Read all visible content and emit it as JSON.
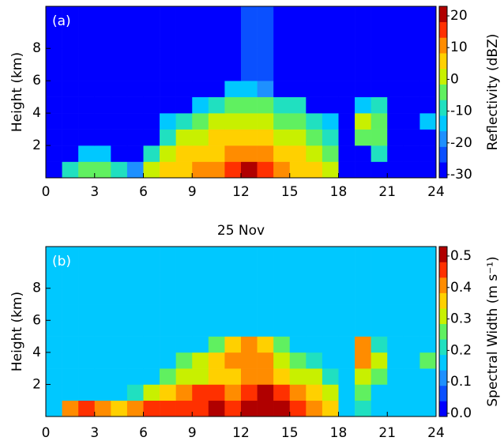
{
  "chart_data": [
    {
      "type": "heatmap",
      "title": "(a)",
      "ylabel": "Height (km)",
      "xlabel": "25 Nov",
      "xlim": [
        0,
        24
      ],
      "ylim": [
        0,
        10.6
      ],
      "xticks": [
        0,
        3,
        6,
        9,
        12,
        15,
        18,
        21,
        24
      ],
      "yticks": [
        2,
        4,
        6,
        8
      ],
      "xbins": [
        0,
        1,
        2,
        3,
        4,
        5,
        6,
        7,
        8,
        9,
        10,
        11,
        12,
        13,
        14,
        15,
        16,
        17,
        18,
        19,
        20,
        21,
        22,
        23,
        24
      ],
      "ybins": [
        0,
        1,
        2,
        3,
        4,
        5,
        6,
        7,
        8,
        9,
        10.6
      ],
      "z": [
        [
          -30,
          -10,
          -5,
          -5,
          -10,
          -20,
          0,
          5,
          5,
          10,
          10,
          15,
          20,
          15,
          10,
          5,
          5,
          0,
          -30,
          -30,
          -30,
          -30,
          -30,
          -30
        ],
        [
          -30,
          -30,
          -15,
          -15,
          -30,
          -30,
          -10,
          0,
          5,
          5,
          5,
          10,
          10,
          10,
          5,
          5,
          0,
          -5,
          -30,
          -30,
          -10,
          -30,
          -30,
          -30
        ],
        [
          -30,
          -30,
          -30,
          -30,
          -30,
          -30,
          -30,
          -10,
          0,
          0,
          5,
          5,
          5,
          5,
          0,
          0,
          -5,
          -10,
          -30,
          -5,
          -5,
          -30,
          -30,
          -30
        ],
        [
          -30,
          -30,
          -30,
          -30,
          -30,
          -30,
          -30,
          -15,
          -10,
          -5,
          0,
          0,
          0,
          0,
          -5,
          -5,
          -10,
          -15,
          -30,
          0,
          -5,
          -30,
          -30,
          -15
        ],
        [
          -30,
          -30,
          -30,
          -30,
          -30,
          -30,
          -30,
          -30,
          -30,
          -15,
          -10,
          -5,
          -5,
          -5,
          -10,
          -10,
          -30,
          -30,
          -30,
          -15,
          -10,
          -30,
          -30,
          -30
        ],
        [
          -30,
          -30,
          -30,
          -30,
          -30,
          -30,
          -30,
          -30,
          -30,
          -30,
          -30,
          -15,
          -15,
          -20,
          -30,
          -30,
          -30,
          -30,
          -30,
          -30,
          -30,
          -30,
          -30,
          -30
        ],
        [
          -30,
          -30,
          -30,
          -30,
          -30,
          -30,
          -30,
          -30,
          -30,
          -30,
          -30,
          -30,
          -25,
          -25,
          -30,
          -30,
          -30,
          -30,
          -30,
          -30,
          -30,
          -30,
          -30,
          -30
        ],
        [
          -30,
          -30,
          -30,
          -30,
          -30,
          -30,
          -30,
          -30,
          -30,
          -30,
          -30,
          -30,
          -25,
          -25,
          -30,
          -30,
          -30,
          -30,
          -30,
          -30,
          -30,
          -30,
          -30,
          -30
        ],
        [
          -30,
          -30,
          -30,
          -30,
          -30,
          -30,
          -30,
          -30,
          -30,
          -30,
          -30,
          -30,
          -25,
          -25,
          -30,
          -30,
          -30,
          -30,
          -30,
          -30,
          -30,
          -30,
          -30,
          -30
        ],
        [
          -30,
          -30,
          -30,
          -30,
          -30,
          -30,
          -30,
          -30,
          -30,
          -30,
          -30,
          -30,
          -25,
          -25,
          -30,
          -30,
          -30,
          -30,
          -30,
          -30,
          -30,
          -30,
          -30,
          -30
        ]
      ],
      "colorbar": {
        "label": "Reflectivity (dBZ)",
        "lim": [
          -31,
          23
        ],
        "ticks": [
          -30,
          -20,
          -10,
          0,
          10,
          20
        ],
        "colors": [
          "#0000ff",
          "#0a50ff",
          "#1e90ff",
          "#00c8ff",
          "#20e0c0",
          "#60f060",
          "#c8f000",
          "#ffd000",
          "#ff8c00",
          "#ff3000",
          "#b00000"
        ]
      }
    },
    {
      "type": "heatmap",
      "title": "(b)",
      "ylabel": "Height (km)",
      "xlim": [
        0,
        24
      ],
      "ylim": [
        0,
        10.6
      ],
      "xticks": [
        0,
        3,
        6,
        9,
        12,
        15,
        18,
        21,
        24
      ],
      "yticks": [
        2,
        4,
        6,
        8
      ],
      "xbins": [
        0,
        1,
        2,
        3,
        4,
        5,
        6,
        7,
        8,
        9,
        10,
        11,
        12,
        13,
        14,
        15,
        16,
        17,
        18,
        19,
        20,
        21,
        22,
        23,
        24
      ],
      "ybins": [
        0,
        1,
        2,
        3,
        4,
        5,
        6,
        7,
        8,
        9,
        10.6
      ],
      "z": [
        [
          0.15,
          0.4,
          0.45,
          0.4,
          0.35,
          0.4,
          0.45,
          0.45,
          0.45,
          0.45,
          0.5,
          0.45,
          0.5,
          0.5,
          0.5,
          0.45,
          0.4,
          0.35,
          0.15,
          0.2,
          0.15,
          0.15,
          0.15,
          0.15
        ],
        [
          0.15,
          0.15,
          0.15,
          0.15,
          0.15,
          0.2,
          0.3,
          0.35,
          0.4,
          0.45,
          0.45,
          0.4,
          0.45,
          0.5,
          0.45,
          0.4,
          0.35,
          0.3,
          0.15,
          0.25,
          0.15,
          0.15,
          0.15,
          0.15
        ],
        [
          0.15,
          0.15,
          0.15,
          0.15,
          0.15,
          0.15,
          0.15,
          0.25,
          0.3,
          0.3,
          0.35,
          0.35,
          0.4,
          0.4,
          0.35,
          0.3,
          0.3,
          0.2,
          0.15,
          0.3,
          0.25,
          0.15,
          0.15,
          0.15
        ],
        [
          0.15,
          0.15,
          0.15,
          0.15,
          0.15,
          0.15,
          0.15,
          0.15,
          0.25,
          0.3,
          0.35,
          0.4,
          0.4,
          0.4,
          0.3,
          0.25,
          0.2,
          0.15,
          0.15,
          0.4,
          0.3,
          0.15,
          0.15,
          0.25
        ],
        [
          0.15,
          0.15,
          0.15,
          0.15,
          0.15,
          0.15,
          0.15,
          0.15,
          0.15,
          0.15,
          0.25,
          0.35,
          0.4,
          0.35,
          0.25,
          0.15,
          0.15,
          0.15,
          0.15,
          0.4,
          0.2,
          0.15,
          0.15,
          0.15
        ],
        [
          0.15,
          0.15,
          0.15,
          0.15,
          0.15,
          0.15,
          0.15,
          0.15,
          0.15,
          0.15,
          0.15,
          0.15,
          0.15,
          0.15,
          0.15,
          0.15,
          0.15,
          0.15,
          0.15,
          0.15,
          0.15,
          0.15,
          0.15,
          0.15
        ],
        [
          0.15,
          0.15,
          0.15,
          0.15,
          0.15,
          0.15,
          0.15,
          0.15,
          0.15,
          0.15,
          0.15,
          0.15,
          0.15,
          0.15,
          0.15,
          0.15,
          0.15,
          0.15,
          0.15,
          0.15,
          0.15,
          0.15,
          0.15,
          0.15
        ],
        [
          0.15,
          0.15,
          0.15,
          0.15,
          0.15,
          0.15,
          0.15,
          0.15,
          0.15,
          0.15,
          0.15,
          0.15,
          0.15,
          0.15,
          0.15,
          0.15,
          0.15,
          0.15,
          0.15,
          0.15,
          0.15,
          0.15,
          0.15,
          0.15
        ],
        [
          0.15,
          0.15,
          0.15,
          0.15,
          0.15,
          0.15,
          0.15,
          0.15,
          0.15,
          0.15,
          0.15,
          0.15,
          0.15,
          0.15,
          0.15,
          0.15,
          0.15,
          0.15,
          0.15,
          0.15,
          0.15,
          0.15,
          0.15,
          0.15
        ],
        [
          0.15,
          0.15,
          0.15,
          0.15,
          0.15,
          0.15,
          0.15,
          0.15,
          0.15,
          0.15,
          0.15,
          0.15,
          0.15,
          0.15,
          0.15,
          0.15,
          0.15,
          0.15,
          0.15,
          0.15,
          0.15,
          0.15,
          0.15,
          0.15
        ]
      ],
      "colorbar": {
        "label": "Spectral Width (m s⁻¹)",
        "lim": [
          -0.01,
          0.53
        ],
        "ticks": [
          {
            "value": 0,
            "label": "0.0"
          },
          0.1,
          0.2,
          0.3,
          0.4,
          0.5
        ],
        "colors": [
          "#0000ff",
          "#0a50ff",
          "#1e90ff",
          "#00c8ff",
          "#20e0c0",
          "#60f060",
          "#c8f000",
          "#ffd000",
          "#ff8c00",
          "#ff3000",
          "#b00000"
        ]
      }
    }
  ]
}
